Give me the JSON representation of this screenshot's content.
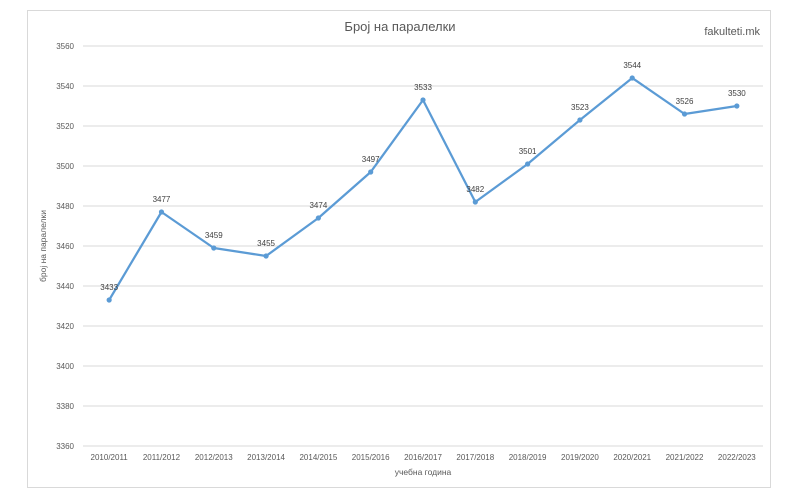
{
  "watermark": "fakulteti.mk",
  "chart_data": {
    "type": "line",
    "title": "Број на паралелки",
    "xlabel": "учебна година",
    "ylabel": "број на паралелки",
    "categories": [
      "2010/2011",
      "2011/2012",
      "2012/2013",
      "2013/2014",
      "2014/2015",
      "2015/2016",
      "2016/2017",
      "2017/2018",
      "2018/2019",
      "2019/2020",
      "2020/2021",
      "2021/2022",
      "2022/2023"
    ],
    "series": [
      {
        "values": [
          3433,
          3477,
          3459,
          3455,
          3474,
          3497,
          3533,
          3482,
          3501,
          3523,
          3544,
          3526,
          3530
        ],
        "color": "#5b9bd5"
      }
    ],
    "data_labels": true,
    "ylim": [
      3360,
      3560
    ],
    "yticks": [
      3360,
      3380,
      3400,
      3420,
      3440,
      3460,
      3480,
      3500,
      3520,
      3540,
      3560
    ],
    "grid": true,
    "legend": "none"
  }
}
